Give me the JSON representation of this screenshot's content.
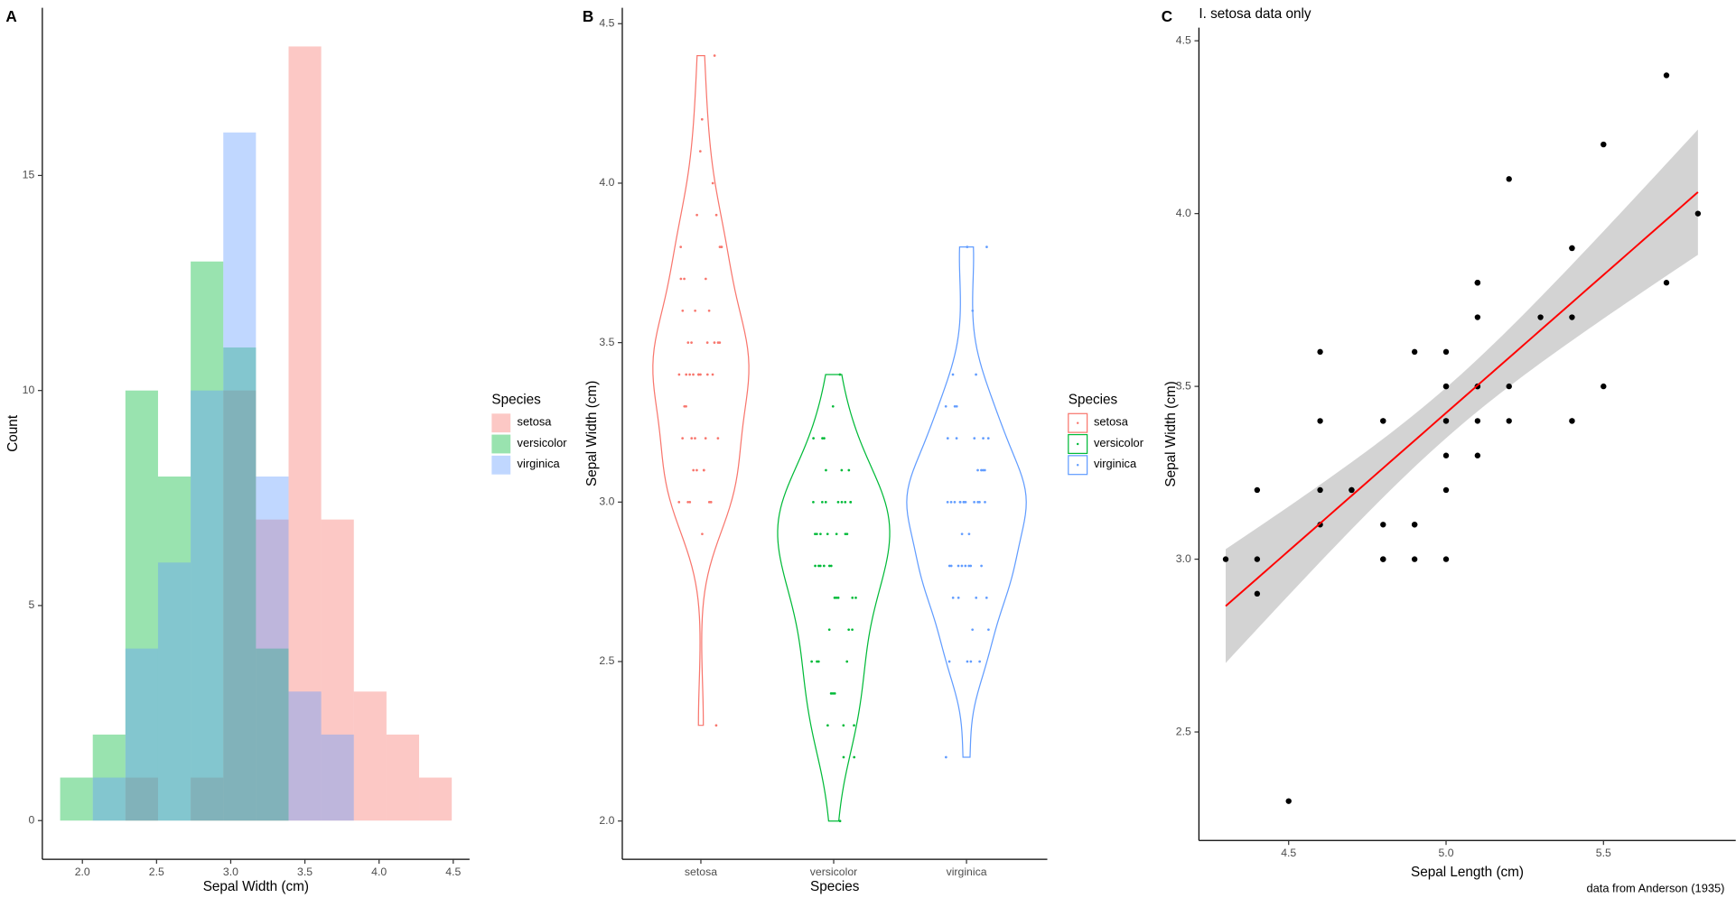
{
  "chart_data": [
    {
      "type": "histogram",
      "tag": "A",
      "xlabel": "Sepal Width (cm)",
      "ylabel": "Count",
      "legend_title": "Species",
      "alpha": 0.4,
      "bins": [
        1.85,
        2.07,
        2.29,
        2.51,
        2.73,
        2.95,
        3.17,
        3.39,
        3.61,
        3.83,
        4.05,
        4.27,
        4.49
      ],
      "series": [
        {
          "name": "setosa",
          "color": "#F8766D",
          "values": [
            0,
            0,
            1,
            0,
            1,
            10,
            7,
            18,
            7,
            3,
            2,
            1
          ]
        },
        {
          "name": "versicolor",
          "color": "#00BA38",
          "values": [
            1,
            2,
            10,
            8,
            13,
            11,
            4,
            0,
            0,
            0,
            0,
            0
          ]
        },
        {
          "name": "virginica",
          "color": "#619CFF",
          "values": [
            0,
            1,
            4,
            6,
            10,
            16,
            8,
            3,
            2,
            0,
            0,
            0
          ]
        }
      ],
      "xlim": [
        1.73,
        4.61
      ],
      "xticks": [
        {
          "value": 2,
          "label": "2.0"
        },
        2.5,
        {
          "value": 3,
          "label": "3.0"
        },
        3.5,
        {
          "value": 4,
          "label": "4.0"
        },
        4.5
      ],
      "ylim": [
        -0.9,
        18.9
      ],
      "yticks": [
        0,
        5,
        10,
        15
      ]
    },
    {
      "type": "violin",
      "tag": "B",
      "xlabel": "Species",
      "ylabel": "Sepal Width (cm)",
      "legend_title": "Species",
      "categories": [
        "setosa",
        "versicolor",
        "virginica"
      ],
      "series": [
        {
          "name": "setosa",
          "color": "#F8766D",
          "values": [
            3.5,
            3.0,
            3.2,
            3.1,
            3.6,
            3.9,
            3.4,
            3.4,
            2.9,
            3.1,
            3.7,
            3.4,
            3.0,
            3.0,
            4.0,
            4.4,
            3.9,
            3.5,
            3.8,
            3.8,
            3.4,
            3.7,
            3.6,
            3.3,
            3.4,
            3.0,
            3.4,
            3.5,
            3.4,
            3.2,
            3.1,
            3.4,
            4.1,
            4.2,
            3.1,
            3.2,
            3.5,
            3.6,
            3.0,
            3.4,
            3.5,
            2.3,
            3.2,
            3.5,
            3.8,
            3.0,
            3.8,
            3.2,
            3.7,
            3.3
          ]
        },
        {
          "name": "versicolor",
          "color": "#00BA38",
          "values": [
            3.2,
            3.2,
            3.1,
            2.3,
            2.8,
            2.8,
            3.3,
            2.4,
            2.9,
            2.7,
            2.0,
            3.0,
            2.2,
            2.9,
            2.9,
            3.1,
            3.0,
            2.7,
            2.2,
            2.5,
            3.2,
            2.8,
            2.5,
            2.8,
            2.9,
            3.0,
            2.8,
            3.0,
            2.9,
            2.6,
            2.4,
            2.4,
            2.7,
            2.7,
            3.0,
            3.4,
            3.1,
            2.3,
            3.0,
            2.5,
            2.6,
            3.0,
            2.6,
            2.3,
            2.7,
            3.0,
            2.9,
            2.9,
            2.5,
            2.8
          ]
        },
        {
          "name": "virginica",
          "color": "#619CFF",
          "values": [
            3.3,
            2.7,
            3.0,
            2.9,
            3.0,
            3.0,
            2.5,
            2.9,
            2.5,
            3.6,
            3.2,
            2.7,
            3.0,
            2.5,
            2.8,
            3.2,
            3.0,
            3.8,
            2.6,
            2.2,
            3.2,
            2.8,
            2.8,
            2.7,
            3.3,
            3.2,
            2.8,
            3.0,
            2.8,
            3.0,
            2.8,
            3.8,
            2.8,
            2.8,
            2.6,
            3.0,
            3.4,
            3.1,
            3.0,
            3.1,
            3.1,
            3.1,
            2.7,
            3.2,
            3.3,
            3.0,
            2.5,
            3.0,
            3.4,
            3.0
          ]
        }
      ],
      "ylim": [
        1.88,
        4.55
      ],
      "yticks": [
        {
          "value": 2,
          "label": "2.0"
        },
        2.5,
        {
          "value": 3,
          "label": "3.0"
        },
        3.5,
        {
          "value": 4,
          "label": "4.0"
        },
        4.5
      ]
    },
    {
      "type": "scatter",
      "tag": "C",
      "title": "I. setosa data only",
      "caption": "data from Anderson (1935)",
      "xlabel": "Sepal Length (cm)",
      "ylabel": "Sepal Width (cm)",
      "color": "#000000",
      "fit_color": "#FF0000",
      "band_color": "#D3D3D3",
      "x": [
        5.1,
        4.9,
        4.7,
        4.6,
        5.0,
        5.4,
        4.6,
        5.0,
        4.4,
        4.9,
        5.4,
        4.8,
        4.8,
        4.3,
        5.8,
        5.7,
        5.4,
        5.1,
        5.7,
        5.1,
        5.4,
        5.1,
        4.6,
        5.1,
        4.8,
        5.0,
        5.0,
        5.2,
        5.2,
        4.7,
        4.8,
        5.4,
        5.2,
        5.5,
        4.9,
        5.0,
        5.5,
        4.9,
        4.4,
        5.1,
        5.0,
        4.5,
        4.4,
        5.0,
        5.1,
        4.8,
        5.1,
        4.6,
        5.3,
        5.0
      ],
      "values": [
        3.5,
        3.0,
        3.2,
        3.1,
        3.6,
        3.9,
        3.4,
        3.4,
        2.9,
        3.1,
        3.7,
        3.4,
        3.0,
        3.0,
        4.0,
        4.4,
        3.9,
        3.5,
        3.8,
        3.8,
        3.4,
        3.7,
        3.6,
        3.3,
        3.4,
        3.0,
        3.4,
        3.5,
        3.4,
        3.2,
        3.1,
        3.4,
        4.1,
        4.2,
        3.1,
        3.2,
        3.5,
        3.6,
        3.0,
        3.4,
        3.5,
        2.3,
        3.2,
        3.5,
        3.8,
        3.0,
        3.8,
        3.2,
        3.7,
        3.3
      ],
      "xlim": [
        4.215,
        5.92
      ],
      "xticks": [
        4.5,
        {
          "value": 5,
          "label": "5.0"
        },
        5.5
      ],
      "ylim": [
        2.186,
        4.538
      ],
      "yticks": [
        2.5,
        {
          "value": 3,
          "label": "3.0"
        },
        3.5,
        {
          "value": 4,
          "label": "4.0"
        },
        4.5
      ]
    }
  ]
}
